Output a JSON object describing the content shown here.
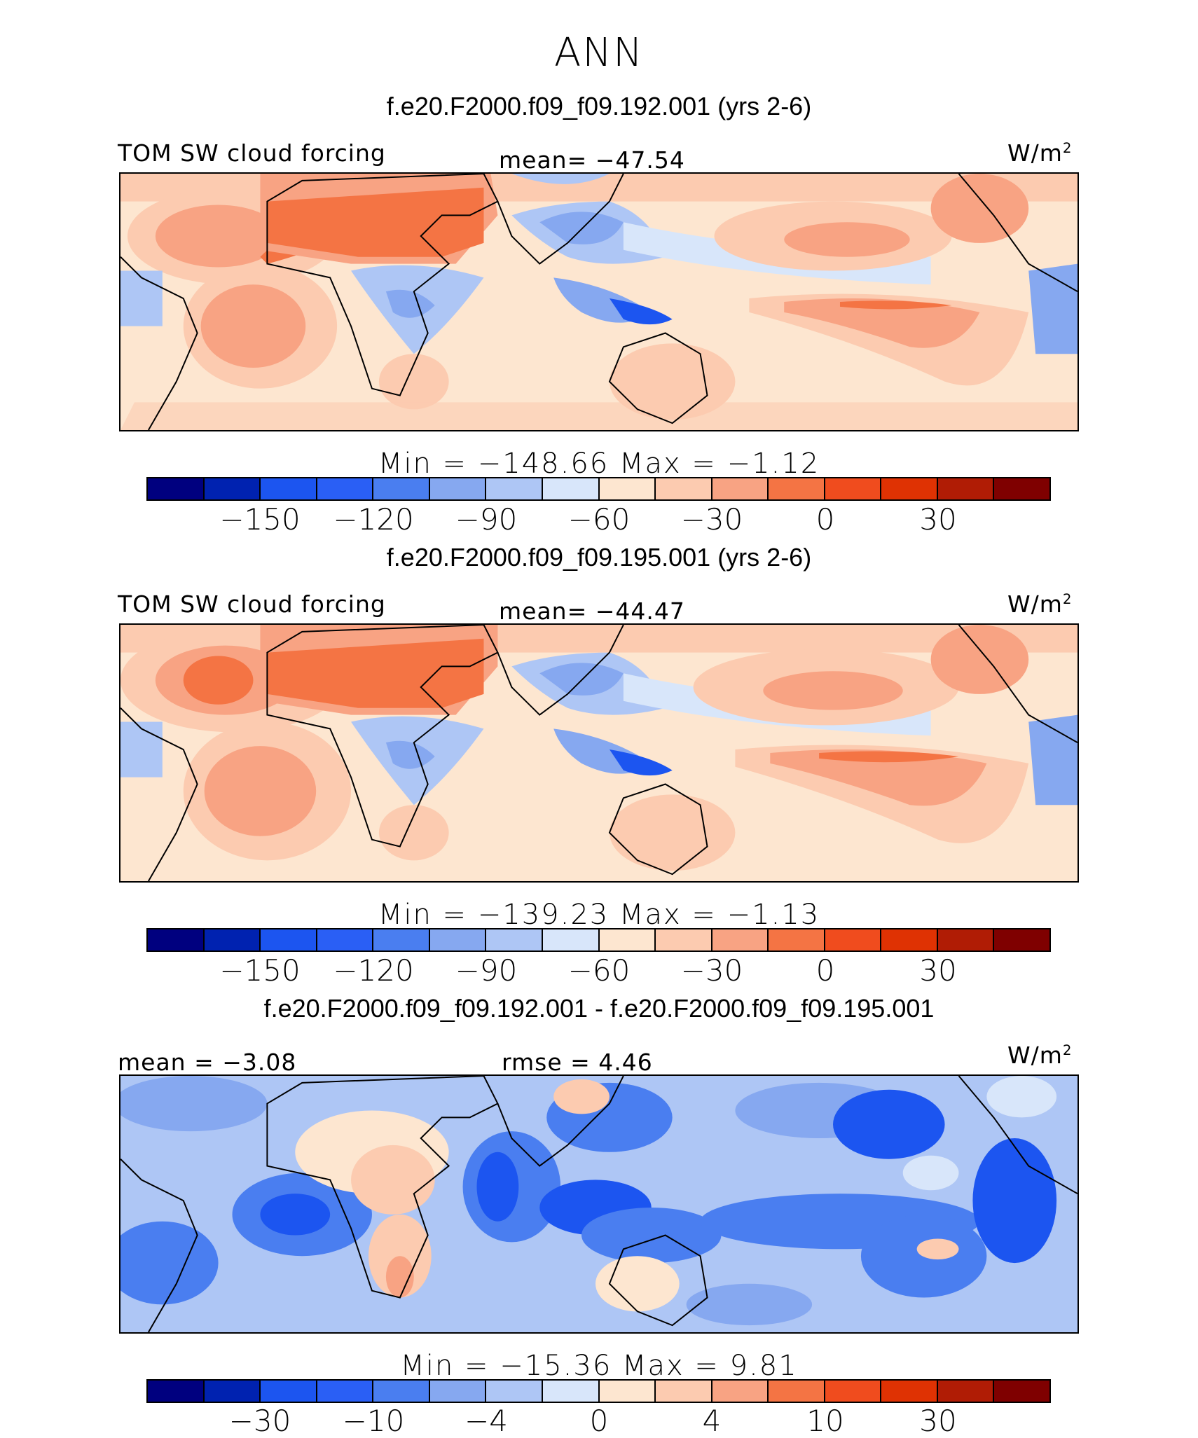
{
  "title": "ANN",
  "colors": [
    "#00007f",
    "#0022b0",
    "#0037d6",
    "#1c55f0",
    "#4a7ef0",
    "#86a8f0",
    "#aec6f5",
    "#d8e6fa",
    "#fde6d0",
    "#fccbb0",
    "#f8a383",
    "#f47444",
    "#f04c1e",
    "#df3203",
    "#b01c05",
    "#7f0000"
  ],
  "panels": [
    {
      "case_title": "f.e20.F2000.f09_f09.192.001 (yrs 2-6)",
      "left_label": "TOM SW cloud forcing",
      "center_label": "mean=  −47.54",
      "units": "W/m",
      "units_sup": "2",
      "minmax": "Min  =  −148.66  Max  =    −1.12",
      "ticks": [
        "−150",
        "−120",
        "−90",
        "−60",
        "−30",
        "0",
        "30"
      ]
    },
    {
      "case_title": "f.e20.F2000.f09_f09.195.001 (yrs 2-6)",
      "left_label": "TOM SW cloud forcing",
      "center_label": "mean=  −44.47",
      "units": "W/m",
      "units_sup": "2",
      "minmax": "Min  =  −139.23  Max  =    −1.13",
      "ticks": [
        "−150",
        "−120",
        "−90",
        "−60",
        "−30",
        "0",
        "30"
      ]
    },
    {
      "case_title": "f.e20.F2000.f09_f09.192.001 - f.e20.F2000.f09_f09.195.001",
      "left_label": "mean  =   −3.08",
      "center_label": "rmse  =     4.46",
      "units": "W/m",
      "units_sup": "2",
      "minmax": "Min  =  −15.36  Max  =      9.81",
      "ticks": [
        "−30",
        "−10",
        "−4",
        "0",
        "4",
        "10",
        "30"
      ]
    }
  ],
  "chart_data": {
    "type": "heatmap",
    "title": "ANN",
    "maps": [
      {
        "name": "f.e20.F2000.f09_f09.192.001 (yrs 2-6)",
        "variable": "TOM SW cloud forcing",
        "mean": -47.54,
        "min": -148.66,
        "max": -1.12,
        "units": "W/m2",
        "levels": [
          -150,
          -120,
          -90,
          -60,
          -30,
          0,
          30
        ]
      },
      {
        "name": "f.e20.F2000.f09_f09.195.001 (yrs 2-6)",
        "variable": "TOM SW cloud forcing",
        "mean": -44.47,
        "min": -139.23,
        "max": -1.13,
        "units": "W/m2",
        "levels": [
          -150,
          -120,
          -90,
          -60,
          -30,
          0,
          30
        ]
      },
      {
        "name": "f.e20.F2000.f09_f09.192.001 - f.e20.F2000.f09_f09.195.001",
        "mean": -3.08,
        "rmse": 4.46,
        "min": -15.36,
        "max": 9.81,
        "units": "W/m2",
        "levels": [
          -30,
          -10,
          -4,
          0,
          4,
          10,
          30
        ]
      }
    ]
  }
}
